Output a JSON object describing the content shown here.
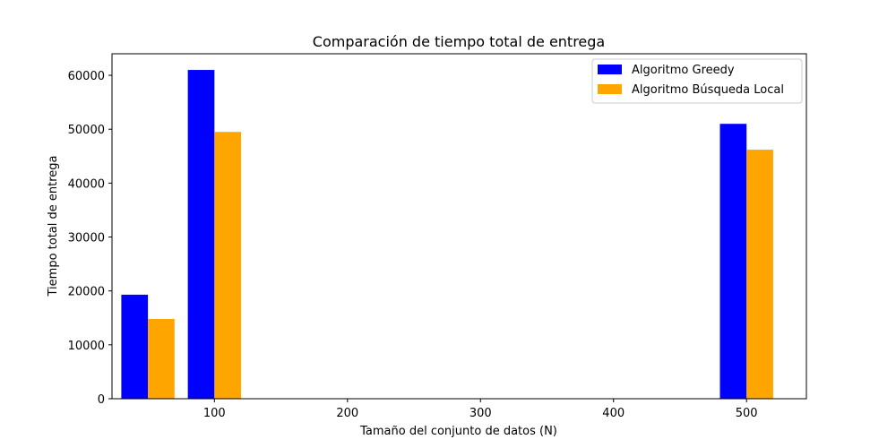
{
  "chart_data": {
    "type": "bar",
    "title": "Comparación de tiempo total de entrega",
    "xlabel": "Tamaño del conjunto de datos (N)",
    "ylabel": "Tiempo total de entrega",
    "x": [
      50,
      100,
      500
    ],
    "bar_width": 20,
    "series": [
      {
        "name": "Algoritmo Greedy",
        "color": "#0000ff",
        "offset": -10,
        "values": [
          19300,
          61000,
          51000
        ]
      },
      {
        "name": "Algoritmo Búsqueda Local",
        "color": "#ffa500",
        "offset": 10,
        "values": [
          14800,
          49500,
          46200
        ]
      }
    ],
    "xlim": [
      23,
      545
    ],
    "ylim": [
      0,
      64000
    ],
    "xticks": [
      100,
      200,
      300,
      400,
      500
    ],
    "yticks": [
      0,
      10000,
      20000,
      30000,
      40000,
      50000,
      60000
    ],
    "legend": "top-right",
    "grid": false
  }
}
